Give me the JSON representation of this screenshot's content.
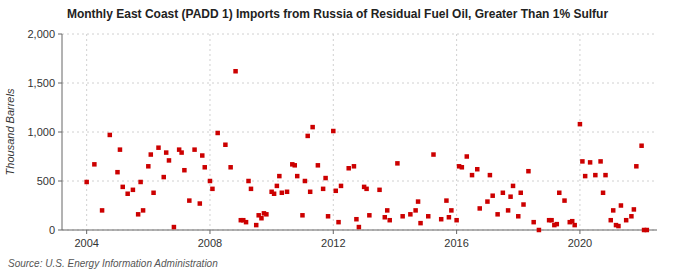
{
  "chart_data": {
    "type": "scatter",
    "title": "Monthly East Coast (PADD 1) Imports from Russia of Residual Fuel Oil, Greater Than 1% Sulfur",
    "y_label": "Thousand Barrels",
    "annotations": [
      "Source: U.S. Energy Information Administration"
    ],
    "color": "#CC0000",
    "marker": "square",
    "grid": true,
    "xlim": [
      2003.2,
      2022.5
    ],
    "xticks": [
      2004,
      2008,
      2012,
      2016,
      2020
    ],
    "ylim": [
      0,
      2000
    ],
    "yticks": [
      0,
      500,
      {
        "value": 1000,
        "label": "1,000"
      },
      {
        "value": 1500,
        "label": "1,500"
      },
      {
        "value": 2000,
        "label": "2,000"
      }
    ],
    "x": [
      2004.0,
      2004.25,
      2004.5,
      2004.75,
      2005.0,
      2005.08,
      2005.17,
      2005.33,
      2005.5,
      2005.67,
      2005.75,
      2005.83,
      2006.0,
      2006.08,
      2006.17,
      2006.33,
      2006.5,
      2006.58,
      2006.67,
      2006.83,
      2007.0,
      2007.08,
      2007.17,
      2007.33,
      2007.5,
      2007.67,
      2007.75,
      2007.83,
      2008.0,
      2008.08,
      2008.25,
      2008.5,
      2008.67,
      2008.83,
      2009.0,
      2009.08,
      2009.17,
      2009.25,
      2009.33,
      2009.5,
      2009.58,
      2009.67,
      2009.75,
      2009.83,
      2010.0,
      2010.08,
      2010.17,
      2010.25,
      2010.33,
      2010.5,
      2010.67,
      2010.75,
      2010.83,
      2011.0,
      2011.08,
      2011.17,
      2011.25,
      2011.33,
      2011.5,
      2011.67,
      2011.75,
      2011.83,
      2012.0,
      2012.08,
      2012.17,
      2012.25,
      2012.5,
      2012.67,
      2012.75,
      2012.83,
      2013.0,
      2013.08,
      2013.17,
      2013.5,
      2013.67,
      2013.75,
      2013.83,
      2014.08,
      2014.25,
      2014.5,
      2014.67,
      2014.75,
      2014.83,
      2015.08,
      2015.25,
      2015.5,
      2015.67,
      2015.75,
      2015.83,
      2016.0,
      2016.08,
      2016.17,
      2016.33,
      2016.5,
      2016.67,
      2016.75,
      2017.0,
      2017.08,
      2017.17,
      2017.33,
      2017.5,
      2017.67,
      2017.75,
      2017.83,
      2018.0,
      2018.08,
      2018.17,
      2018.33,
      2018.5,
      2018.67,
      2019.0,
      2019.08,
      2019.17,
      2019.25,
      2019.33,
      2019.5,
      2019.67,
      2019.75,
      2019.83,
      2020.0,
      2020.08,
      2020.17,
      2020.33,
      2020.5,
      2020.67,
      2020.75,
      2020.83,
      2021.0,
      2021.08,
      2021.17,
      2021.25,
      2021.33,
      2021.5,
      2021.67,
      2021.75,
      2021.83,
      2022.0,
      2022.08,
      2022.17
    ],
    "values": [
      490,
      670,
      200,
      970,
      590,
      820,
      440,
      370,
      410,
      160,
      490,
      200,
      650,
      770,
      380,
      840,
      540,
      790,
      710,
      30,
      820,
      790,
      610,
      300,
      820,
      270,
      760,
      640,
      500,
      420,
      990,
      870,
      640,
      1620,
      100,
      100,
      80,
      500,
      420,
      50,
      150,
      120,
      170,
      160,
      390,
      370,
      450,
      550,
      380,
      390,
      670,
      660,
      550,
      150,
      500,
      960,
      390,
      1050,
      660,
      420,
      530,
      140,
      1010,
      400,
      80,
      450,
      630,
      650,
      110,
      30,
      440,
      420,
      150,
      410,
      130,
      200,
      100,
      680,
      140,
      160,
      200,
      290,
      70,
      140,
      770,
      110,
      300,
      130,
      200,
      100,
      650,
      640,
      750,
      560,
      620,
      220,
      290,
      560,
      350,
      160,
      380,
      200,
      340,
      450,
      140,
      380,
      260,
      600,
      80,
      0,
      100,
      100,
      50,
      60,
      380,
      300,
      80,
      90,
      50,
      1080,
      700,
      550,
      690,
      560,
      700,
      380,
      560,
      100,
      200,
      50,
      40,
      250,
      100,
      140,
      210,
      650,
      860,
      0,
      0
    ]
  }
}
